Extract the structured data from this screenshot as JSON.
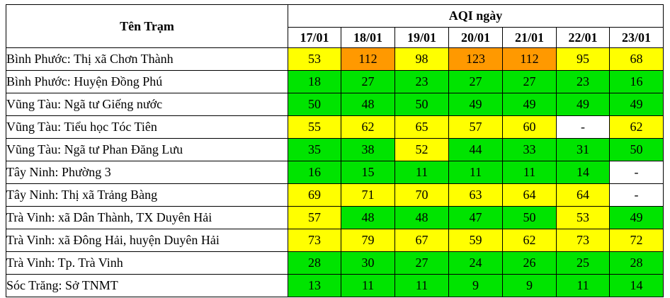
{
  "header": {
    "station": "Tên Trạm",
    "aqi_group": "AQI ngày",
    "dates": [
      "17/01",
      "18/01",
      "19/01",
      "20/01",
      "21/01",
      "22/01",
      "23/01"
    ]
  },
  "colors": {
    "yellow": "#ffff00",
    "green": "#00e400",
    "orange": "#ff9900",
    "white": "#ffffff"
  },
  "rows": [
    {
      "name": "Bình Phước: Thị xã Chơn Thành",
      "values": [
        "53",
        "112",
        "98",
        "123",
        "112",
        "95",
        "68"
      ],
      "levels": [
        "yellow",
        "orange",
        "yellow",
        "orange",
        "orange",
        "yellow",
        "yellow"
      ]
    },
    {
      "name": "Bình Phước: Huyện Đồng Phú",
      "values": [
        "18",
        "27",
        "23",
        "27",
        "27",
        "23",
        "16"
      ],
      "levels": [
        "green",
        "green",
        "green",
        "green",
        "green",
        "green",
        "green"
      ]
    },
    {
      "name": "Vũng Tàu: Ngã tư Giếng nước",
      "values": [
        "50",
        "48",
        "50",
        "49",
        "49",
        "49",
        "49"
      ],
      "levels": [
        "green",
        "green",
        "green",
        "green",
        "green",
        "green",
        "green"
      ]
    },
    {
      "name": "Vũng Tàu: Tiểu học Tóc Tiên",
      "values": [
        "55",
        "62",
        "65",
        "57",
        "60",
        "-",
        "62"
      ],
      "levels": [
        "yellow",
        "yellow",
        "yellow",
        "yellow",
        "yellow",
        "white",
        "yellow"
      ]
    },
    {
      "name": "Vũng Tàu: Ngã tư Phan Đăng Lưu",
      "values": [
        "35",
        "38",
        "52",
        "44",
        "33",
        "31",
        "50"
      ],
      "levels": [
        "green",
        "green",
        "yellow",
        "green",
        "green",
        "green",
        "green"
      ]
    },
    {
      "name": "Tây Ninh: Phường 3",
      "values": [
        "16",
        "15",
        "11",
        "11",
        "11",
        "14",
        "-"
      ],
      "levels": [
        "green",
        "green",
        "green",
        "green",
        "green",
        "green",
        "white"
      ]
    },
    {
      "name": "Tây Ninh: Thị xã Trảng Bàng",
      "values": [
        "69",
        "71",
        "70",
        "63",
        "64",
        "64",
        "-"
      ],
      "levels": [
        "yellow",
        "yellow",
        "yellow",
        "yellow",
        "yellow",
        "yellow",
        "white"
      ]
    },
    {
      "name": "Trà Vinh: xã Dân Thành, TX Duyên Hải",
      "values": [
        "57",
        "48",
        "48",
        "47",
        "50",
        "53",
        "49"
      ],
      "levels": [
        "yellow",
        "green",
        "green",
        "green",
        "green",
        "yellow",
        "green"
      ]
    },
    {
      "name": "Trà Vinh: xã Đông Hải, huyện Duyên Hải",
      "values": [
        "73",
        "79",
        "67",
        "59",
        "62",
        "73",
        "72"
      ],
      "levels": [
        "yellow",
        "yellow",
        "yellow",
        "yellow",
        "yellow",
        "yellow",
        "yellow"
      ]
    },
    {
      "name": "Trà Vinh: Tp. Trà Vinh",
      "values": [
        "28",
        "30",
        "27",
        "24",
        "26",
        "25",
        "28"
      ],
      "levels": [
        "green",
        "green",
        "green",
        "green",
        "green",
        "green",
        "green"
      ]
    },
    {
      "name": "Sóc Trăng: Sở TNMT",
      "values": [
        "13",
        "11",
        "11",
        "9",
        "9",
        "11",
        "14"
      ],
      "levels": [
        "green",
        "green",
        "green",
        "green",
        "green",
        "green",
        "green"
      ]
    }
  ]
}
